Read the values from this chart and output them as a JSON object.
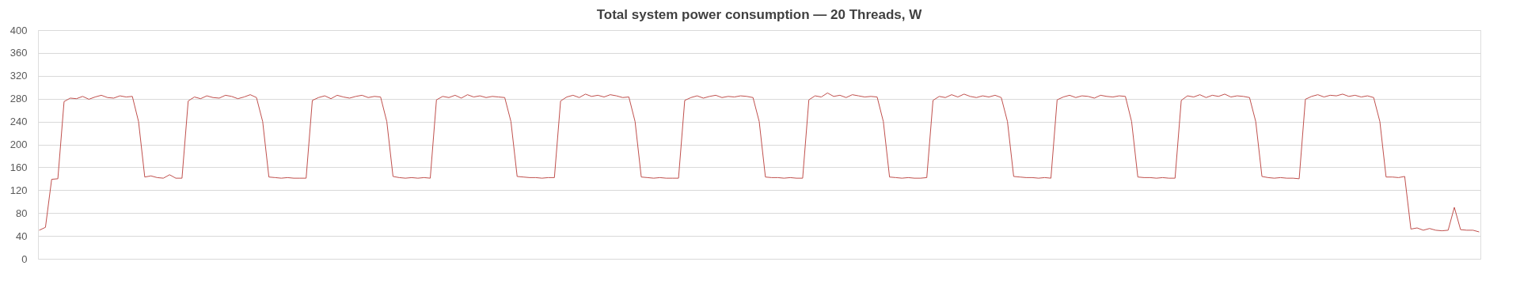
{
  "chart_data": {
    "type": "line",
    "title": "Total system power consumption — 20 Threads, W",
    "categories": [
      null,
      null,
      null,
      null,
      null,
      null,
      null,
      null,
      null,
      null,
      null,
      null,
      null,
      null,
      null,
      null,
      null,
      null,
      null,
      null,
      null,
      null,
      null,
      null,
      null,
      null,
      null,
      null,
      null,
      null,
      null,
      null,
      null,
      null,
      null,
      null,
      null,
      null,
      null,
      null,
      null,
      null,
      null,
      null,
      null,
      null,
      null,
      null,
      null,
      null,
      null,
      null,
      null,
      null,
      null,
      null,
      null,
      null,
      null,
      null,
      null,
      null,
      null,
      null,
      null,
      null,
      null,
      null,
      null,
      null,
      null,
      null,
      null,
      null,
      null,
      null,
      null,
      null,
      null,
      null,
      null,
      null,
      null,
      null,
      null,
      null,
      null,
      null,
      null,
      null,
      null,
      null,
      null,
      null,
      null,
      null,
      null,
      null,
      null,
      null,
      null,
      null,
      null,
      null,
      null,
      null,
      null,
      null,
      null,
      null,
      null,
      null,
      null,
      null,
      null,
      null,
      null,
      null,
      null,
      null,
      null,
      null,
      null,
      null,
      null,
      null,
      null,
      null,
      null,
      null,
      null,
      null,
      null,
      null,
      null,
      null,
      null,
      null,
      null,
      null,
      null,
      null,
      null,
      null,
      null,
      null,
      null,
      null,
      null,
      null,
      null,
      null,
      null,
      null,
      null,
      null,
      null,
      null,
      null,
      null,
      null,
      null,
      null,
      null,
      null,
      null,
      null,
      null,
      null,
      null,
      null,
      null,
      null,
      null,
      null,
      null,
      null,
      null,
      null,
      null,
      null,
      null,
      null,
      null,
      null,
      null,
      null,
      null,
      null,
      null,
      null,
      null,
      null,
      null,
      null,
      null,
      null,
      null,
      null,
      null,
      null,
      null,
      null,
      null,
      null,
      null,
      null,
      null,
      null,
      null,
      null,
      null,
      null,
      null,
      null,
      null,
      null,
      null,
      null,
      null,
      null,
      null,
      null,
      null,
      null,
      null,
      null,
      null,
      null,
      null,
      null,
      null,
      null
    ],
    "series": [
      {
        "color": "#c0504d",
        "values": [
          50,
          55,
          139,
          140,
          275,
          281,
          280,
          284,
          279,
          283,
          286,
          282,
          281,
          285,
          283,
          284,
          240,
          143,
          145,
          142,
          141,
          147,
          141,
          141,
          276,
          283,
          280,
          285,
          282,
          281,
          286,
          284,
          280,
          283,
          287,
          282,
          240,
          143,
          142,
          141,
          142,
          141,
          141,
          141,
          277,
          282,
          285,
          280,
          286,
          283,
          281,
          284,
          286,
          282,
          284,
          283,
          240,
          144,
          142,
          141,
          142,
          141,
          142,
          141,
          278,
          284,
          282,
          286,
          281,
          287,
          283,
          285,
          282,
          284,
          283,
          282,
          240,
          144,
          143,
          142,
          142,
          141,
          142,
          142,
          276,
          283,
          286,
          282,
          288,
          284,
          286,
          283,
          287,
          285,
          282,
          283,
          240,
          143,
          142,
          141,
          142,
          141,
          141,
          141,
          277,
          282,
          285,
          281,
          284,
          286,
          282,
          284,
          283,
          285,
          284,
          282,
          240,
          143,
          142,
          142,
          141,
          142,
          141,
          141,
          278,
          285,
          283,
          290,
          284,
          286,
          282,
          287,
          285,
          283,
          284,
          283,
          240,
          143,
          142,
          141,
          142,
          141,
          141,
          142,
          277,
          284,
          282,
          287,
          283,
          288,
          284,
          282,
          285,
          283,
          286,
          282,
          240,
          144,
          143,
          142,
          142,
          141,
          142,
          141,
          278,
          283,
          286,
          282,
          285,
          284,
          281,
          286,
          284,
          283,
          285,
          284,
          240,
          143,
          142,
          142,
          141,
          142,
          141,
          141,
          277,
          285,
          283,
          287,
          282,
          286,
          284,
          288,
          283,
          285,
          284,
          282,
          240,
          144,
          142,
          141,
          142,
          141,
          141,
          140,
          279,
          284,
          287,
          283,
          286,
          285,
          288,
          284,
          286,
          283,
          285,
          282,
          240,
          143,
          143,
          142,
          144,
          52,
          54,
          50,
          53,
          50,
          49,
          50,
          90,
          51,
          50,
          50,
          47
        ]
      }
    ],
    "ylim": [
      0,
      400
    ],
    "yticks": [
      0,
      40,
      80,
      120,
      160,
      200,
      240,
      280,
      320,
      360,
      400
    ],
    "grid": "y",
    "tick_labels": "y"
  }
}
